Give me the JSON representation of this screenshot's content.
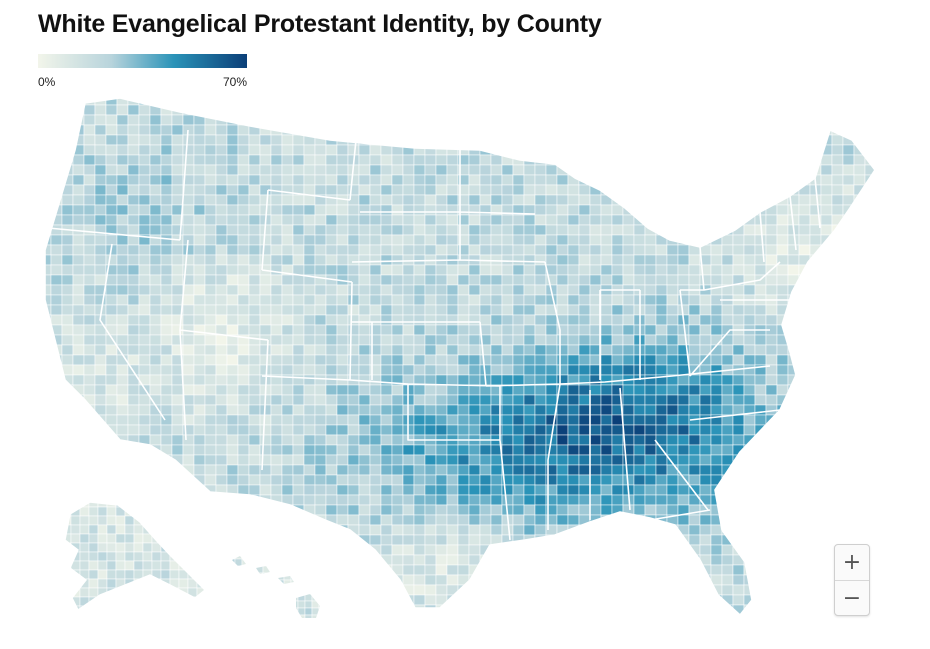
{
  "title": "White Evangelical Protestant Identity, by County",
  "legend": {
    "min_label": "0%",
    "max_label": "70%",
    "color_low": "#f2f5ea",
    "color_mid": "#2a93b8",
    "color_high": "#0b3f78"
  },
  "zoom": {
    "zoom_in_label": "+",
    "zoom_out_label": "−"
  },
  "colors": {
    "border": "#ffffff",
    "state_border": "#ffffff"
  }
}
